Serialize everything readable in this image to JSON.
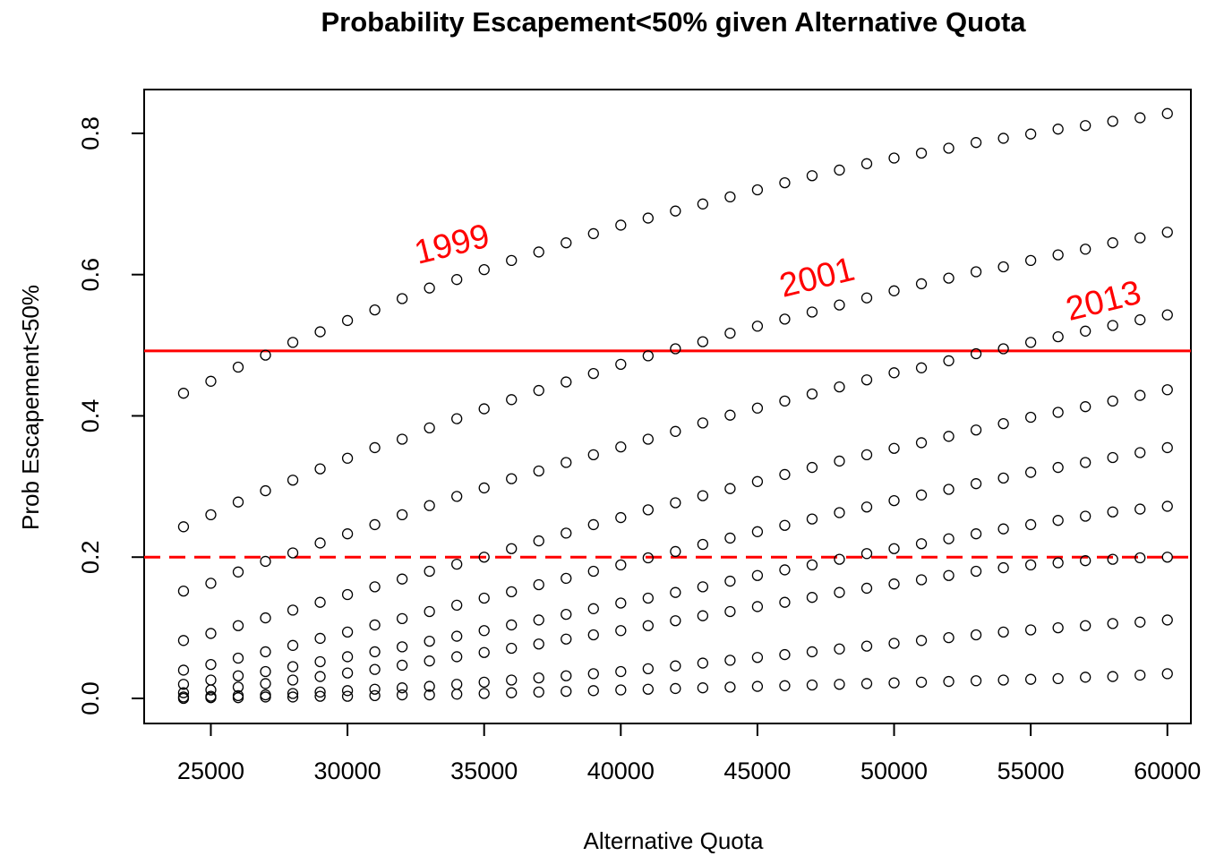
{
  "chart_data": {
    "type": "scatter",
    "title": "Probability Escapement<50% given Alternative Quota",
    "x_label": "Alternative Quota",
    "y_label": "Prob Escapement<50%",
    "xlim": [
      22560,
      60860
    ],
    "ylim": [
      -0.0355,
      0.862
    ],
    "xticks": [
      25000,
      30000,
      35000,
      40000,
      45000,
      50000,
      55000,
      60000
    ],
    "yticks": [
      0.0,
      0.2,
      0.4,
      0.6,
      0.8
    ],
    "color": "#000000",
    "x": [
      24000,
      25000,
      26000,
      27000,
      28000,
      29000,
      30000,
      31000,
      32000,
      33000,
      34000,
      35000,
      36000,
      37000,
      38000,
      39000,
      40000,
      41000,
      42000,
      43000,
      44000,
      45000,
      46000,
      47000,
      48000,
      49000,
      50000,
      51000,
      52000,
      53000,
      54000,
      55000,
      56000,
      57000,
      58000,
      59000,
      60000
    ],
    "series": [
      {
        "values": [
          0.432,
          0.449,
          0.469,
          0.486,
          0.504,
          0.519,
          0.535,
          0.55,
          0.566,
          0.581,
          0.593,
          0.607,
          0.62,
          0.632,
          0.645,
          0.658,
          0.67,
          0.68,
          0.69,
          0.7,
          0.71,
          0.72,
          0.73,
          0.74,
          0.748,
          0.757,
          0.765,
          0.772,
          0.779,
          0.787,
          0.793,
          0.799,
          0.806,
          0.811,
          0.817,
          0.822,
          0.828
        ]
      },
      {
        "values": [
          0.243,
          0.26,
          0.278,
          0.294,
          0.309,
          0.325,
          0.34,
          0.355,
          0.367,
          0.383,
          0.396,
          0.41,
          0.423,
          0.436,
          0.448,
          0.46,
          0.473,
          0.485,
          0.495,
          0.505,
          0.517,
          0.527,
          0.537,
          0.547,
          0.557,
          0.567,
          0.577,
          0.587,
          0.595,
          0.604,
          0.611,
          0.62,
          0.628,
          0.636,
          0.645,
          0.652,
          0.66
        ]
      },
      {
        "values": [
          0.152,
          0.163,
          0.179,
          0.194,
          0.206,
          0.22,
          0.233,
          0.246,
          0.26,
          0.273,
          0.286,
          0.298,
          0.311,
          0.322,
          0.334,
          0.345,
          0.356,
          0.367,
          0.378,
          0.39,
          0.401,
          0.411,
          0.421,
          0.431,
          0.441,
          0.451,
          0.461,
          0.468,
          0.478,
          0.488,
          0.495,
          0.504,
          0.512,
          0.52,
          0.528,
          0.536,
          0.543
        ]
      },
      {
        "values": [
          0.082,
          0.092,
          0.103,
          0.114,
          0.125,
          0.136,
          0.147,
          0.158,
          0.169,
          0.18,
          0.19,
          0.2,
          0.212,
          0.223,
          0.234,
          0.246,
          0.256,
          0.267,
          0.277,
          0.287,
          0.297,
          0.307,
          0.317,
          0.327,
          0.336,
          0.345,
          0.354,
          0.362,
          0.371,
          0.38,
          0.389,
          0.398,
          0.405,
          0.413,
          0.421,
          0.429,
          0.437
        ]
      },
      {
        "values": [
          0.04,
          0.048,
          0.057,
          0.066,
          0.075,
          0.085,
          0.094,
          0.104,
          0.113,
          0.123,
          0.132,
          0.142,
          0.151,
          0.161,
          0.17,
          0.18,
          0.189,
          0.199,
          0.208,
          0.218,
          0.227,
          0.236,
          0.245,
          0.254,
          0.263,
          0.271,
          0.28,
          0.288,
          0.296,
          0.304,
          0.312,
          0.32,
          0.327,
          0.334,
          0.341,
          0.348,
          0.355
        ]
      },
      {
        "values": [
          0.02,
          0.026,
          0.032,
          0.038,
          0.045,
          0.052,
          0.059,
          0.066,
          0.073,
          0.081,
          0.088,
          0.096,
          0.104,
          0.111,
          0.119,
          0.127,
          0.135,
          0.142,
          0.15,
          0.158,
          0.166,
          0.174,
          0.182,
          0.189,
          0.197,
          0.205,
          0.212,
          0.219,
          0.226,
          0.233,
          0.24,
          0.246,
          0.252,
          0.258,
          0.264,
          0.268,
          0.272
        ]
      },
      {
        "values": [
          0.008,
          0.012,
          0.016,
          0.021,
          0.026,
          0.031,
          0.036,
          0.041,
          0.047,
          0.053,
          0.059,
          0.065,
          0.071,
          0.077,
          0.084,
          0.09,
          0.096,
          0.103,
          0.11,
          0.117,
          0.123,
          0.13,
          0.136,
          0.143,
          0.15,
          0.156,
          0.162,
          0.168,
          0.174,
          0.18,
          0.185,
          0.189,
          0.192,
          0.195,
          0.197,
          0.199,
          0.2
        ]
      },
      {
        "values": [
          0.002,
          0.003,
          0.004,
          0.005,
          0.007,
          0.009,
          0.011,
          0.013,
          0.015,
          0.017,
          0.02,
          0.023,
          0.026,
          0.029,
          0.032,
          0.035,
          0.038,
          0.042,
          0.046,
          0.05,
          0.054,
          0.058,
          0.062,
          0.066,
          0.07,
          0.074,
          0.078,
          0.082,
          0.086,
          0.09,
          0.094,
          0.097,
          0.1,
          0.103,
          0.106,
          0.108,
          0.111
        ]
      },
      {
        "values": [
          0.0,
          0.001,
          0.001,
          0.002,
          0.002,
          0.003,
          0.003,
          0.004,
          0.005,
          0.005,
          0.006,
          0.007,
          0.008,
          0.009,
          0.01,
          0.011,
          0.012,
          0.013,
          0.014,
          0.015,
          0.016,
          0.017,
          0.018,
          0.019,
          0.02,
          0.021,
          0.022,
          0.023,
          0.024,
          0.025,
          0.026,
          0.027,
          0.028,
          0.03,
          0.031,
          0.033,
          0.035
        ]
      }
    ],
    "hlines": [
      {
        "value": 0.492,
        "style": "solid",
        "color": "#ff0000"
      },
      {
        "value": 0.2,
        "style": "dashed",
        "color": "#ff0000"
      }
    ],
    "annotations": [
      {
        "text": "1999",
        "x": 33840,
        "y": 0.64,
        "color": "#ff0000"
      },
      {
        "text": "2001",
        "x": 47200,
        "y": 0.593,
        "color": "#ff0000"
      },
      {
        "text": "2013",
        "x": 57680,
        "y": 0.56,
        "color": "#ff0000"
      }
    ]
  }
}
